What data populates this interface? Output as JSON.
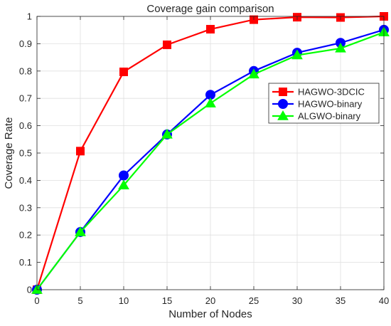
{
  "chart_data": {
    "type": "line",
    "title": "Coverage gain comparison",
    "xlabel": "Number of Nodes",
    "ylabel": "Coverage Rate",
    "xlim": [
      0,
      40
    ],
    "ylim": [
      0,
      1
    ],
    "xticks": [
      0,
      5,
      10,
      15,
      20,
      25,
      30,
      35,
      40
    ],
    "yticks": [
      0,
      0.1,
      0.2,
      0.3,
      0.4,
      0.5,
      0.6,
      0.7,
      0.8,
      0.9,
      1
    ],
    "xtick_labels": [
      "0",
      "5",
      "10",
      "15",
      "20",
      "25",
      "30",
      "35",
      "40"
    ],
    "ytick_labels": [
      "0",
      "0.1",
      "0.2",
      "0.3",
      "0.4",
      "0.5",
      "0.6",
      "0.7",
      "0.8",
      "0.9",
      "1"
    ],
    "grid": true,
    "legend_position": "right",
    "x": [
      0,
      5,
      10,
      15,
      20,
      25,
      30,
      35,
      40
    ],
    "series": [
      {
        "name": "HAGWO-3DCIC",
        "color": "#ff0000",
        "marker": "square",
        "values": [
          0,
          0.507,
          0.797,
          0.896,
          0.953,
          0.988,
          0.997,
          0.996,
          1.0
        ]
      },
      {
        "name": "HAGWO-binary",
        "color": "#0000ff",
        "marker": "circle",
        "values": [
          0,
          0.211,
          0.418,
          0.568,
          0.713,
          0.8,
          0.867,
          0.903,
          0.951
        ]
      },
      {
        "name": "ALGWO-binary",
        "color": "#00ff00",
        "marker": "triangle",
        "values": [
          0,
          0.211,
          0.382,
          0.568,
          0.682,
          0.788,
          0.858,
          0.883,
          0.942
        ]
      }
    ]
  }
}
